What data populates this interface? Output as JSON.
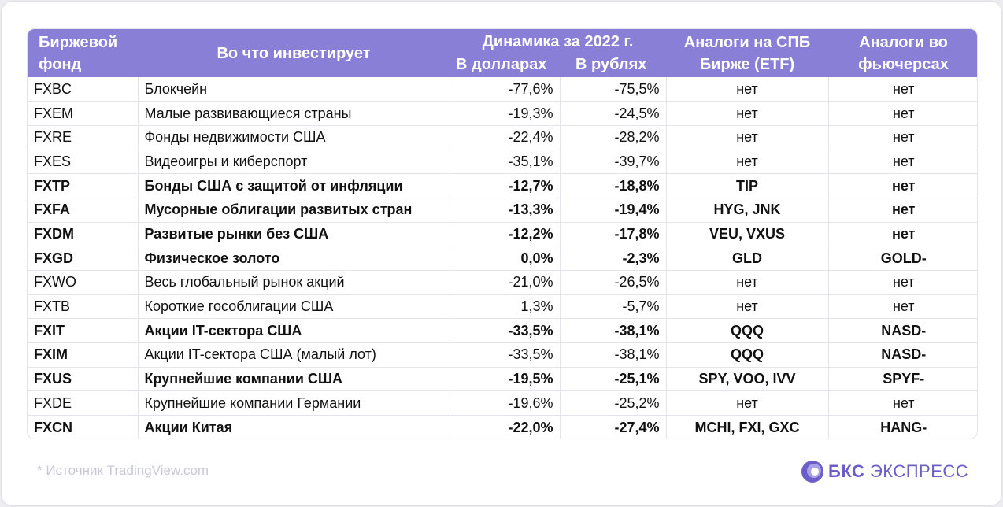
{
  "header": {
    "col_fund": "Биржевой фонд",
    "col_invest": "Во что инвестирует",
    "col_dynamics": "Динамика за 2022 г.",
    "col_usd": "В долларах",
    "col_rub": "В рублях",
    "col_spb": "Аналоги на СПБ Бирже (ETF)",
    "col_futures": "Аналоги во фьючерсах"
  },
  "rows": [
    {
      "fund": "FXBC",
      "invest": "Блокчейн",
      "usd": "-77,6%",
      "rub": "-75,5%",
      "spb": "нет",
      "futures": "нет",
      "bold": false
    },
    {
      "fund": "FXEM",
      "invest": "Малые развивающиеся страны",
      "usd": "-19,3%",
      "rub": "-24,5%",
      "spb": "нет",
      "futures": "нет",
      "bold": false
    },
    {
      "fund": "FXRE",
      "invest": "Фонды недвижимости США",
      "usd": "-22,4%",
      "rub": "-28,2%",
      "spb": "нет",
      "futures": "нет",
      "bold": false
    },
    {
      "fund": "FXES",
      "invest": "Видеоигры и киберспорт",
      "usd": "-35,1%",
      "rub": "-39,7%",
      "spb": "нет",
      "futures": "нет",
      "bold": false
    },
    {
      "fund": "FXTP",
      "invest": "Бонды США с защитой от инфляции",
      "usd": "-12,7%",
      "rub": "-18,8%",
      "spb": "TIP",
      "futures": "нет",
      "bold": true
    },
    {
      "fund": "FXFA",
      "invest": "Мусорные облигации развитых стран",
      "usd": "-13,3%",
      "rub": "-19,4%",
      "spb": "HYG, JNK",
      "futures": "нет",
      "bold": true
    },
    {
      "fund": "FXDM",
      "invest": "Развитые рынки без США",
      "usd": "-12,2%",
      "rub": "-17,8%",
      "spb": "VEU, VXUS",
      "futures": "нет",
      "bold": true
    },
    {
      "fund": "FXGD",
      "invest": "Физическое золото",
      "usd": "0,0%",
      "rub": "-2,3%",
      "spb": "GLD",
      "futures": "GOLD-",
      "bold": true
    },
    {
      "fund": "FXWO",
      "invest": "Весь глобальный рынок акций",
      "usd": "-21,0%",
      "rub": "-26,5%",
      "spb": "нет",
      "futures": "нет",
      "bold": false
    },
    {
      "fund": "FXTB",
      "invest": "Короткие гособлигации США",
      "usd": "1,3%",
      "rub": "-5,7%",
      "spb": "нет",
      "futures": "нет",
      "bold": false
    },
    {
      "fund": "FXIT",
      "invest": "Акции IT-сектора США",
      "usd": "-33,5%",
      "rub": "-38,1%",
      "spb": "QQQ",
      "futures": "NASD-",
      "bold": true
    },
    {
      "fund": "FXIM",
      "invest": "Акции IT-сектора США (малый лот)",
      "usd": "-33,5%",
      "rub": "-38,1%",
      "spb": "QQQ",
      "futures": "NASD-",
      "bold": false,
      "partial_bold": true
    },
    {
      "fund": "FXUS",
      "invest": "Крупнейшие компании США",
      "usd": "-19,5%",
      "rub": "-25,1%",
      "spb": "SPY, VOO, IVV",
      "futures": "SPYF-",
      "bold": true
    },
    {
      "fund": "FXDE",
      "invest": "Крупнейшие компании Германии",
      "usd": "-19,6%",
      "rub": "-25,2%",
      "spb": "нет",
      "futures": "нет",
      "bold": false
    },
    {
      "fund": "FXCN",
      "invest": "Акции Китая",
      "usd": "-22,0%",
      "rub": "-27,4%",
      "spb": "MCHI, FXI, GXC",
      "futures": "HANG-",
      "bold": true
    }
  ],
  "footer": {
    "source": "*  Источник TradingView.com",
    "logo_bold": "БКС",
    "logo_rest": " ЭКСПРЕСС"
  },
  "colors": {
    "header_bg": "#8a7fd6",
    "brand": "#6b5fc7"
  }
}
